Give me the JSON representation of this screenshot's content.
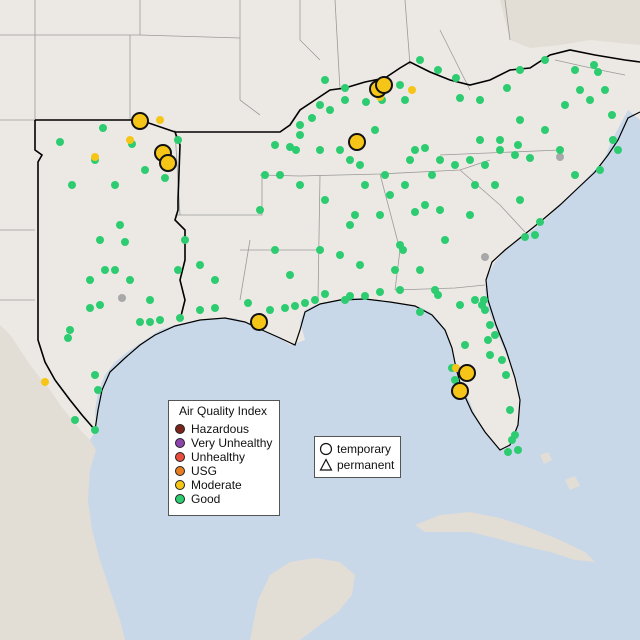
{
  "colors": {
    "ocean": "#c8d8e8",
    "land": "#ece9e4",
    "foreign_land": "#e2ddd5",
    "state_border": "#9a9a9a",
    "region_border": "#000000",
    "good": "#2ecc71",
    "moderate": "#f5c518",
    "usg": "#e67e22",
    "unhealthy": "#e74c3c",
    "very_unhealthy": "#8e44ad",
    "hazardous": "#7b241c",
    "inactive": "#a8a8a8"
  },
  "legend": {
    "title": "Air Quality Index",
    "items": [
      {
        "label": "Hazardous",
        "color": "#7b241c"
      },
      {
        "label": "Very Unhealthy",
        "color": "#8e44ad"
      },
      {
        "label": "Unhealthy",
        "color": "#e74c3c"
      },
      {
        "label": "USG",
        "color": "#e67e22"
      },
      {
        "label": "Moderate",
        "color": "#f5c518"
      },
      {
        "label": "Good",
        "color": "#2ecc71"
      }
    ]
  },
  "monitor_type_legend": {
    "temporary": "temporary",
    "permanent": "permanent",
    "temporary_icon": "circle-icon",
    "permanent_icon": "triangle-icon"
  }
}
